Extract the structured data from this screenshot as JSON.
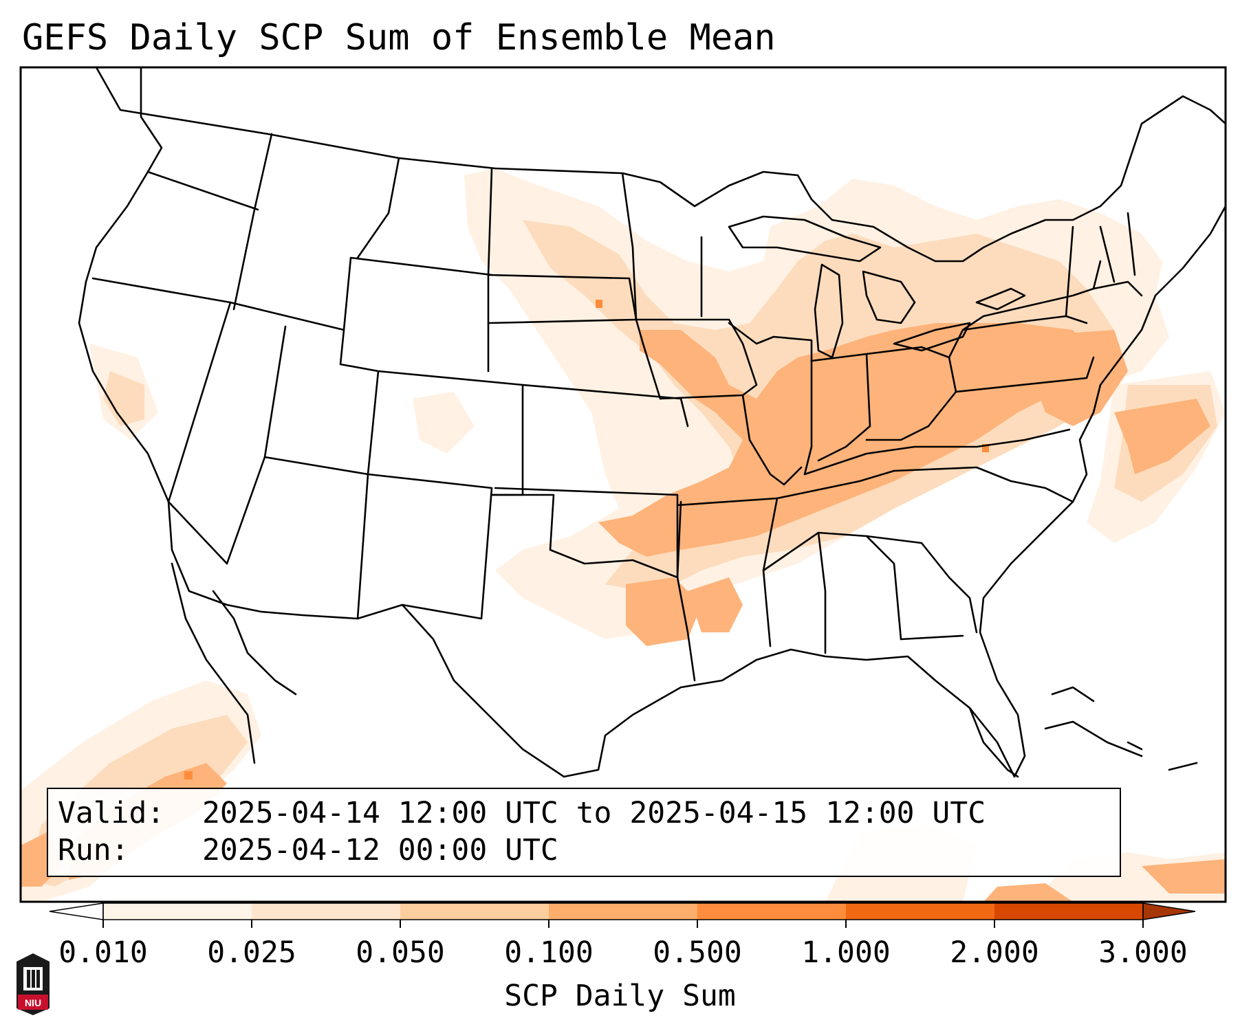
{
  "title": "GEFS Daily SCP Sum of Ensemble Mean",
  "info": {
    "valid_label": "Valid:",
    "valid_value": "2025-04-14 12:00 UTC to 2025-04-15 12:00 UTC",
    "run_label": "Run:",
    "run_value": "2025-04-12 00:00 UTC"
  },
  "colorbar": {
    "label": "SCP Daily Sum",
    "ticks": [
      "0.010",
      "0.025",
      "0.050",
      "0.100",
      "0.500",
      "1.000",
      "2.000",
      "3.000"
    ],
    "colors": [
      "#fff4e8",
      "#fde5cc",
      "#fdcf9f",
      "#fdae6b",
      "#fd8d3c",
      "#f16913",
      "#d94801",
      "#a63603"
    ],
    "extend": "both"
  },
  "logo": {
    "text": "NIU",
    "colors": {
      "red": "#c8102e",
      "dark": "#1a1a1a"
    }
  },
  "map": {
    "domain": "Continental United States",
    "shading_color_low": "#fde5cc",
    "shading_color_mid": "#fdcf9f",
    "shading_color_high": "#fdae6b",
    "line_color": "#000000"
  }
}
